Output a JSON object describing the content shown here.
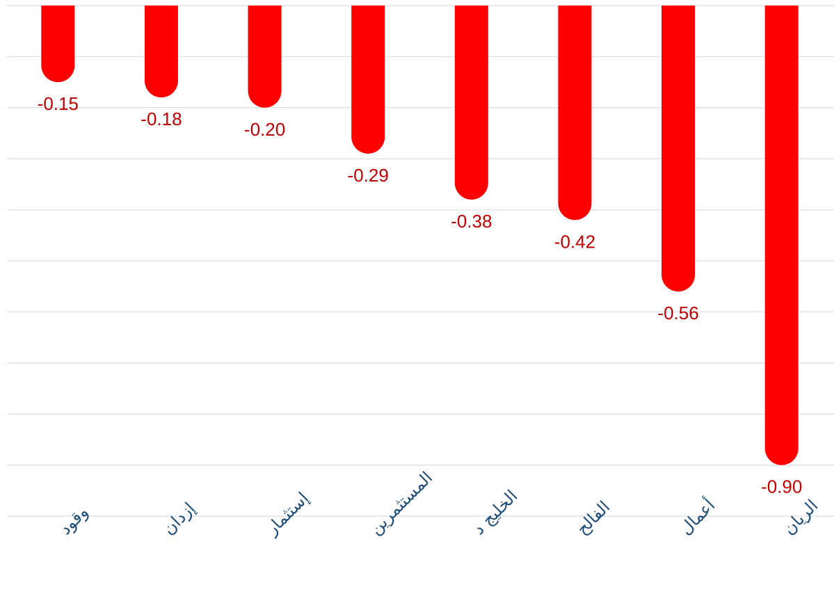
{
  "chart_data": {
    "type": "bar",
    "categories": [
      "وقود",
      "إزدان",
      "إستثمار",
      "المستثمرين",
      "الخليج د",
      "الفالح",
      "أعمال",
      "الريان"
    ],
    "values": [
      -0.15,
      -0.18,
      -0.2,
      -0.29,
      -0.38,
      -0.42,
      -0.56,
      -0.9
    ],
    "value_labels": [
      "-0.15",
      "-0.18",
      "-0.20",
      "-0.29",
      "-0.38",
      "-0.42",
      "-0.56",
      "-0.90"
    ],
    "ylim": [
      -1.0,
      0.0
    ],
    "grid": true,
    "colors": {
      "bar": "#ff0000",
      "value_label": "#c00000",
      "category_label": "#1f4e79",
      "grid": "#dde3ea"
    }
  }
}
